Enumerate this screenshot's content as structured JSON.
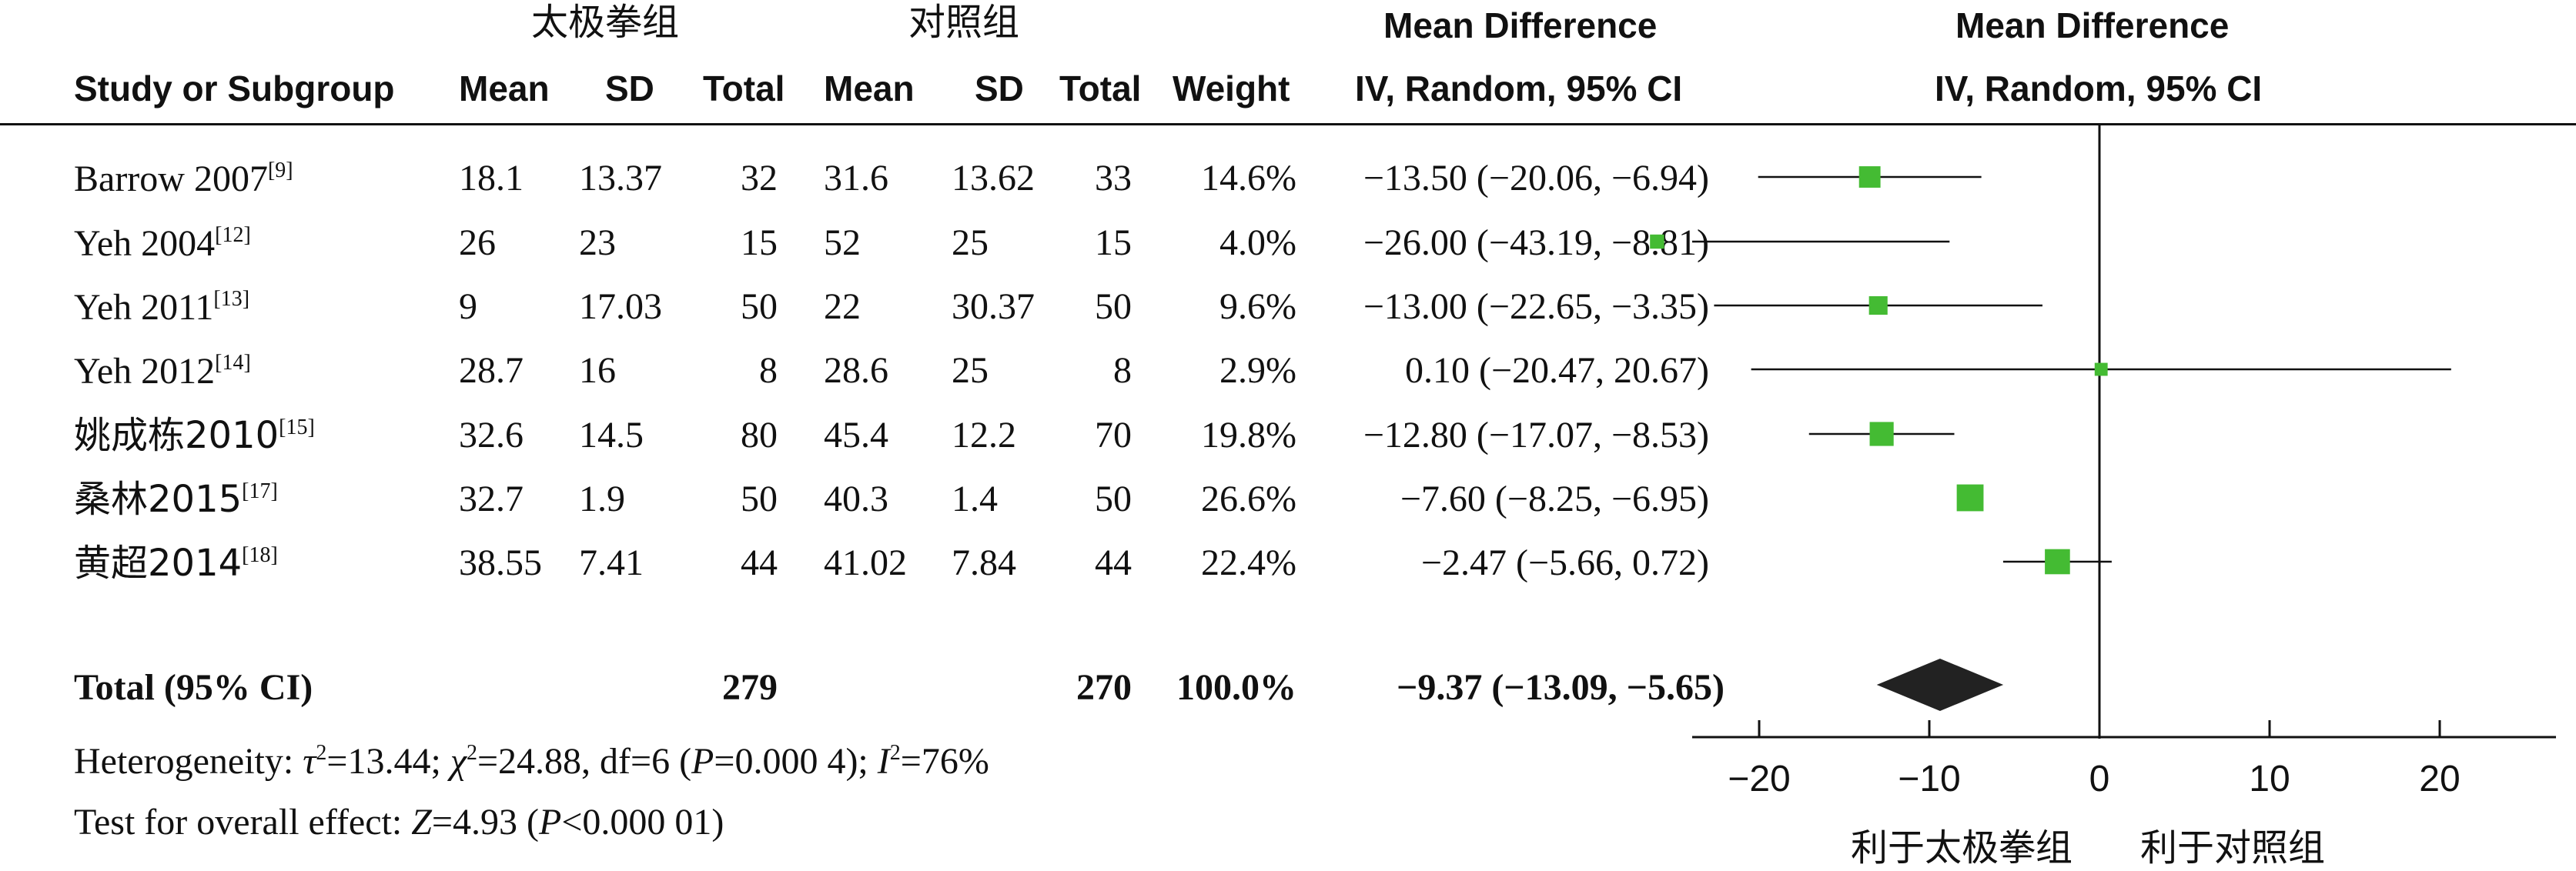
{
  "header": {
    "group1": "太极拳组",
    "group2": "对照组",
    "md_title": "Mean Difference",
    "md_sub": "IV, Random, 95% CI",
    "plot_title": "Mean Difference",
    "plot_sub": "IV, Random, 95% CI",
    "cols": [
      "Study or Subgroup",
      "Mean",
      "SD",
      "Total",
      "Mean",
      "SD",
      "Total",
      "Weight"
    ]
  },
  "studies": [
    {
      "name": "Barrow 2007",
      "ref": "[9]",
      "m1": "18.1",
      "sd1": "13.37",
      "n1": "32",
      "m2": "31.6",
      "sd2": "13.62",
      "n2": "33",
      "weight": "14.6%",
      "ci": "−13.50 (−20.06, −6.94)"
    },
    {
      "name": "Yeh 2004",
      "ref": "[12]",
      "m1": "26",
      "sd1": "23",
      "n1": "15",
      "m2": "52",
      "sd2": "25",
      "n2": "15",
      "weight": "4.0%",
      "ci": "−26.00 (−43.19, −8.81)"
    },
    {
      "name": "Yeh 2011",
      "ref": "[13]",
      "m1": "9",
      "sd1": "17.03",
      "n1": "50",
      "m2": "22",
      "sd2": "30.37",
      "n2": "50",
      "weight": "9.6%",
      "ci": "−13.00 (−22.65, −3.35)"
    },
    {
      "name": "Yeh 2012",
      "ref": "[14]",
      "m1": "28.7",
      "sd1": "16",
      "n1": "8",
      "m2": "28.6",
      "sd2": "25",
      "n2": "8",
      "weight": "2.9%",
      "ci": "0.10 (−20.47, 20.67)"
    },
    {
      "name": "姚成栋2010",
      "ref": "[15]",
      "m1": "32.6",
      "sd1": "14.5",
      "n1": "80",
      "m2": "45.4",
      "sd2": "12.2",
      "n2": "70",
      "weight": "19.8%",
      "ci": "−12.80 (−17.07, −8.53)"
    },
    {
      "name": "桑林2015",
      "ref": "[17]",
      "m1": "32.7",
      "sd1": "1.9",
      "n1": "50",
      "m2": "40.3",
      "sd2": "1.4",
      "n2": "50",
      "weight": "26.6%",
      "ci": "−7.60 (−8.25, −6.95)"
    },
    {
      "name": "黄超2014",
      "ref": "[18]",
      "m1": "38.55",
      "sd1": "7.41",
      "n1": "44",
      "m2": "41.02",
      "sd2": "7.84",
      "n2": "44",
      "weight": "22.4%",
      "ci": "−2.47 (−5.66, 0.72)"
    }
  ],
  "total": {
    "label": "Total (95% CI)",
    "n1": "279",
    "n2": "270",
    "weight": "100.0%",
    "ci": "−9.37 (−13.09, −5.65)"
  },
  "heterogeneity": {
    "pre": "Heterogeneity: ",
    "tau": "τ",
    "tau_val": "=13.44; ",
    "chi": "χ",
    "chi_val": "=24.88, df=6 (",
    "p": "P",
    "p_val": "=0.000 4); ",
    "i": "I",
    "i_val": "=76%",
    "sq": "2"
  },
  "overall": {
    "pre": "Test for overall effect: ",
    "z": "Z",
    "z_val": "=4.93 (",
    "p": "P",
    "p_val": "<0.000 01)"
  },
  "favours": {
    "left": "利于太极拳组",
    "right": "利于对照组"
  },
  "chart_data": {
    "type": "forest",
    "xlim": [
      -30,
      40
    ],
    "ticks": [
      -20,
      -10,
      0,
      10,
      20
    ],
    "marker_color": "#44bb33",
    "diamond_color": "#222222",
    "studies": [
      {
        "name": "Barrow 2007",
        "md": -13.5,
        "lo": -20.06,
        "hi": -6.94,
        "weight": 14.6
      },
      {
        "name": "Yeh 2004",
        "md": -26.0,
        "lo": -43.19,
        "hi": -8.81,
        "weight": 4.0
      },
      {
        "name": "Yeh 2011",
        "md": -13.0,
        "lo": -22.65,
        "hi": -3.35,
        "weight": 9.6
      },
      {
        "name": "Yeh 2012",
        "md": 0.1,
        "lo": -20.47,
        "hi": 20.67,
        "weight": 2.9
      },
      {
        "name": "姚成栋2010",
        "md": -12.8,
        "lo": -17.07,
        "hi": -8.53,
        "weight": 19.8
      },
      {
        "name": "桑林2015",
        "md": -7.6,
        "lo": -8.25,
        "hi": -6.95,
        "weight": 26.6
      },
      {
        "name": "黄超2014",
        "md": -2.47,
        "lo": -5.66,
        "hi": 0.72,
        "weight": 22.4
      }
    ],
    "pooled": {
      "md": -9.37,
      "lo": -13.09,
      "hi": -5.65
    }
  }
}
